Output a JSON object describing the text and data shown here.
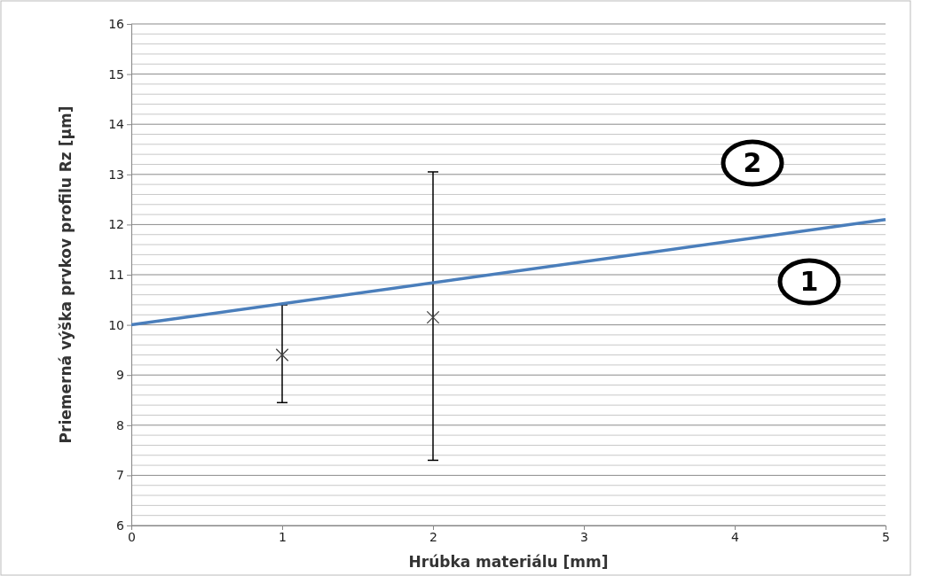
{
  "chart_data": {
    "type": "scatter",
    "xlabel": "Hrúbka materiálu [mm]",
    "ylabel": "Priemerná výška prvkov profilu Rz [µm]",
    "xlim": [
      0,
      5
    ],
    "xticks": [
      0,
      1,
      2,
      3,
      4,
      5
    ],
    "ylim": [
      6,
      16
    ],
    "yticks": [
      6,
      7,
      8,
      9,
      10,
      11,
      12,
      13,
      14,
      15,
      16
    ],
    "grid": "y",
    "series": [
      {
        "color": "#404040",
        "marker": "cross",
        "x": [
          1,
          2
        ],
        "values": [
          9.4,
          10.15
        ],
        "errors": [
          [
            8.45,
            10.4
          ],
          [
            7.3,
            13.05
          ]
        ]
      },
      {
        "type": "line",
        "color": "#4a7ebb",
        "x": [
          0,
          5
        ],
        "values": [
          10,
          12.1
        ],
        "marker": "none",
        "line_style": "solid"
      }
    ],
    "annotations": [
      "2",
      "1"
    ]
  }
}
